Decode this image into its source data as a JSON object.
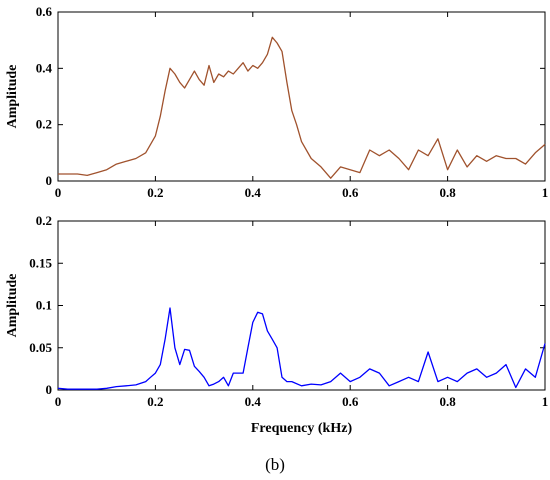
{
  "caption": "(b)",
  "chart_data": [
    {
      "type": "line",
      "title": "",
      "xlabel": "",
      "ylabel": "Amplitude",
      "xlim": [
        0,
        1
      ],
      "ylim": [
        0,
        0.6
      ],
      "xticks": [
        "0",
        "0.2",
        "0.4",
        "0.6",
        "0.8",
        "1"
      ],
      "yticks": [
        "0",
        "0.2",
        "0.4",
        "0.6"
      ],
      "grid": false,
      "series": [
        {
          "color": "#a0522d",
          "x": [
            0,
            0.02,
            0.04,
            0.06,
            0.08,
            0.1,
            0.12,
            0.14,
            0.16,
            0.18,
            0.2,
            0.21,
            0.22,
            0.23,
            0.24,
            0.25,
            0.26,
            0.27,
            0.28,
            0.29,
            0.3,
            0.31,
            0.32,
            0.33,
            0.34,
            0.35,
            0.36,
            0.37,
            0.38,
            0.39,
            0.4,
            0.41,
            0.42,
            0.43,
            0.44,
            0.45,
            0.46,
            0.47,
            0.48,
            0.49,
            0.5,
            0.52,
            0.54,
            0.56,
            0.58,
            0.6,
            0.62,
            0.64,
            0.66,
            0.68,
            0.7,
            0.72,
            0.74,
            0.76,
            0.78,
            0.8,
            0.82,
            0.84,
            0.86,
            0.88,
            0.9,
            0.92,
            0.94,
            0.96,
            0.98,
            1.0
          ],
          "y": [
            0.025,
            0.025,
            0.025,
            0.02,
            0.03,
            0.04,
            0.06,
            0.07,
            0.08,
            0.1,
            0.16,
            0.23,
            0.32,
            0.4,
            0.38,
            0.35,
            0.33,
            0.36,
            0.39,
            0.36,
            0.34,
            0.41,
            0.35,
            0.38,
            0.37,
            0.39,
            0.38,
            0.4,
            0.42,
            0.39,
            0.41,
            0.4,
            0.42,
            0.45,
            0.51,
            0.49,
            0.46,
            0.35,
            0.25,
            0.2,
            0.14,
            0.08,
            0.05,
            0.01,
            0.05,
            0.04,
            0.03,
            0.11,
            0.09,
            0.11,
            0.08,
            0.04,
            0.11,
            0.09,
            0.15,
            0.04,
            0.11,
            0.05,
            0.09,
            0.07,
            0.09,
            0.08,
            0.08,
            0.06,
            0.1,
            0.13
          ]
        }
      ]
    },
    {
      "type": "line",
      "title": "",
      "xlabel": "Frequency (kHz)",
      "ylabel": "Amplitude",
      "xlim": [
        0,
        1
      ],
      "ylim": [
        0,
        0.2
      ],
      "xticks": [
        "0",
        "0.2",
        "0.4",
        "0.6",
        "0.8",
        "1"
      ],
      "yticks": [
        "0",
        "0.05",
        "0.1",
        "0.15",
        "0.2"
      ],
      "grid": false,
      "series": [
        {
          "color": "#0000ff",
          "x": [
            0,
            0.02,
            0.04,
            0.06,
            0.08,
            0.1,
            0.12,
            0.14,
            0.16,
            0.18,
            0.19,
            0.2,
            0.21,
            0.22,
            0.23,
            0.24,
            0.25,
            0.26,
            0.27,
            0.28,
            0.29,
            0.3,
            0.31,
            0.32,
            0.33,
            0.34,
            0.35,
            0.36,
            0.37,
            0.38,
            0.39,
            0.4,
            0.41,
            0.42,
            0.43,
            0.44,
            0.45,
            0.46,
            0.47,
            0.48,
            0.5,
            0.52,
            0.54,
            0.56,
            0.58,
            0.6,
            0.62,
            0.64,
            0.66,
            0.68,
            0.7,
            0.72,
            0.74,
            0.76,
            0.78,
            0.8,
            0.82,
            0.84,
            0.86,
            0.88,
            0.9,
            0.92,
            0.94,
            0.96,
            0.98,
            1.0
          ],
          "y": [
            0.002,
            0.001,
            0.001,
            0.001,
            0.001,
            0.002,
            0.004,
            0.005,
            0.006,
            0.01,
            0.015,
            0.02,
            0.03,
            0.06,
            0.097,
            0.05,
            0.03,
            0.048,
            0.047,
            0.028,
            0.022,
            0.015,
            0.005,
            0.007,
            0.01,
            0.015,
            0.005,
            0.02,
            0.02,
            0.02,
            0.05,
            0.08,
            0.092,
            0.09,
            0.07,
            0.06,
            0.05,
            0.015,
            0.01,
            0.01,
            0.005,
            0.007,
            0.006,
            0.01,
            0.02,
            0.01,
            0.015,
            0.025,
            0.02,
            0.005,
            0.01,
            0.015,
            0.01,
            0.045,
            0.01,
            0.015,
            0.01,
            0.02,
            0.025,
            0.015,
            0.02,
            0.03,
            0.003,
            0.025,
            0.015,
            0.055
          ]
        }
      ]
    }
  ]
}
